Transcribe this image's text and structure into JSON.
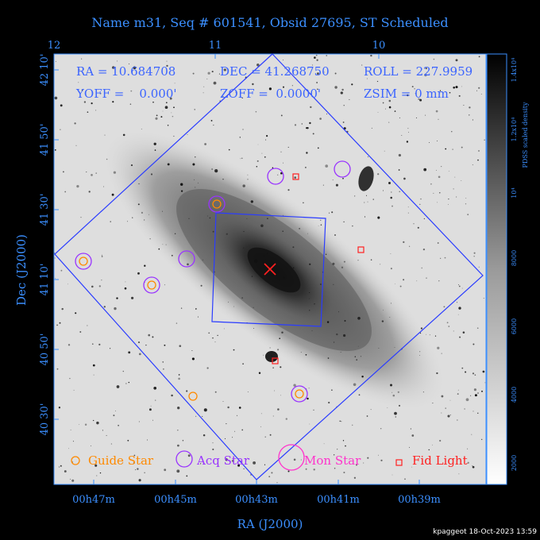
{
  "title": "Name m31, Seq # 601541, Obsid 27695, ST Scheduled",
  "top_axis_ticks": [
    "12",
    "11",
    "10"
  ],
  "bottom_axis_ticks": [
    "00h47m",
    "00h45m",
    "00h43m",
    "00h41m",
    "00h39m"
  ],
  "left_axis_ticks": [
    "42 10'",
    "41 50'",
    "41 30'",
    "41 10'",
    "40 50'",
    "40 30'"
  ],
  "x_axis_label": "RA (J2000)",
  "y_axis_label": "Dec (J2000)",
  "overlay": {
    "ra": "RA = 10.684708",
    "dec": "DEC = 41.268750",
    "roll": "ROLL = 227.9959",
    "yoff": "YOFF =    0.000'",
    "zoff": "ZOFF =  0.0000'",
    "zsim": "ZSIM = 0 mm"
  },
  "legend": {
    "guide": "Guide Star",
    "acq": "Acq Star",
    "mon": "Mon Star",
    "fid": "Fid Light"
  },
  "colorbar": {
    "label": "PDSS scaled density",
    "ticks": [
      "2000",
      "4000",
      "6000",
      "8000",
      "10⁴",
      "1.2x10⁴",
      "1.4x10⁴"
    ]
  },
  "footer": "kpaggeot 18-Oct-2023 13:59",
  "colors": {
    "axis": "#3b8fff",
    "overlay": "#2a3cff",
    "guide": "#ff8a00",
    "acq": "#9933ff",
    "mon": "#ff33cc",
    "fid": "#ff2020",
    "target": "#ff2020"
  }
}
